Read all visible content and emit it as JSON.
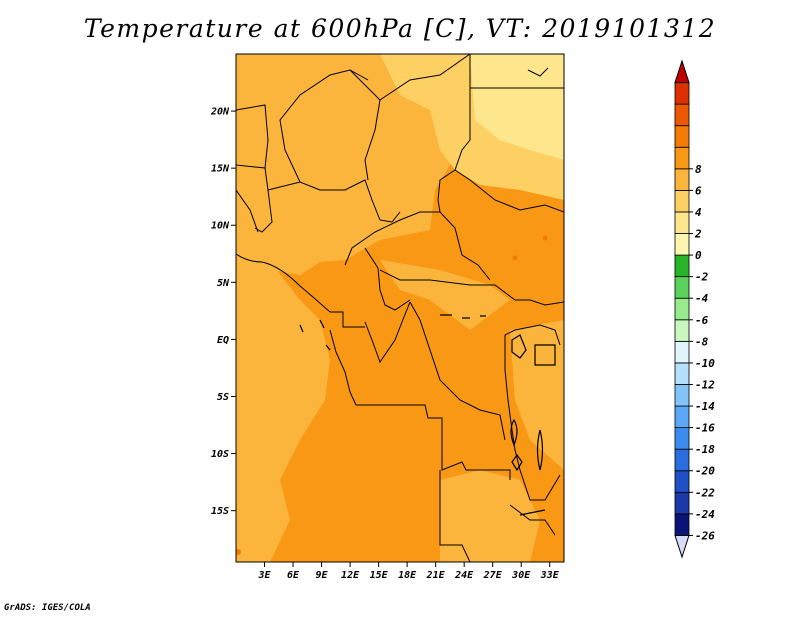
{
  "title": "Temperature at 600hPa [C], VT: 2019101312",
  "footer": "GrADS: IGES/COLA",
  "map": {
    "lon_range": [
      0,
      34.5
    ],
    "lat_range": [
      -19.5,
      25
    ],
    "lat_ticks": [
      {
        "value": 20,
        "label": "20N"
      },
      {
        "value": 15,
        "label": "15N"
      },
      {
        "value": 10,
        "label": "10N"
      },
      {
        "value": 5,
        "label": "5N"
      },
      {
        "value": 0,
        "label": "EQ"
      },
      {
        "value": -5,
        "label": "5S"
      },
      {
        "value": -10,
        "label": "10S"
      },
      {
        "value": -15,
        "label": "15S"
      }
    ],
    "lon_ticks": [
      {
        "value": 3,
        "label": "3E"
      },
      {
        "value": 6,
        "label": "6E"
      },
      {
        "value": 9,
        "label": "9E"
      },
      {
        "value": 12,
        "label": "12E"
      },
      {
        "value": 15,
        "label": "15E"
      },
      {
        "value": 18,
        "label": "18E"
      },
      {
        "value": 21,
        "label": "21E"
      },
      {
        "value": 24,
        "label": "24E"
      },
      {
        "value": 27,
        "label": "27E"
      },
      {
        "value": 30,
        "label": "30E"
      },
      {
        "value": 33,
        "label": "33E"
      }
    ]
  },
  "colorbar": {
    "colors": [
      "#d8dcf8",
      "#0a1478",
      "#1a38a8",
      "#1e50c8",
      "#2a6ee0",
      "#3c8cf0",
      "#5aa8f8",
      "#82c4fa",
      "#b4e0fc",
      "#e0f6fc",
      "#c8f8c0",
      "#96ec8c",
      "#5cd25c",
      "#28b428",
      "#fef6b0",
      "#fee68c",
      "#fdd064",
      "#fbb43c",
      "#f99814",
      "#f47c06",
      "#ec5800",
      "#dc3000",
      "#c00000"
    ],
    "labels": [
      "-26",
      "-24",
      "-22",
      "-20",
      "-18",
      "-16",
      "-14",
      "-12",
      "-10",
      "-8",
      "-6",
      "-4",
      "-2",
      "0",
      "2",
      "4",
      "6",
      "8"
    ]
  }
}
